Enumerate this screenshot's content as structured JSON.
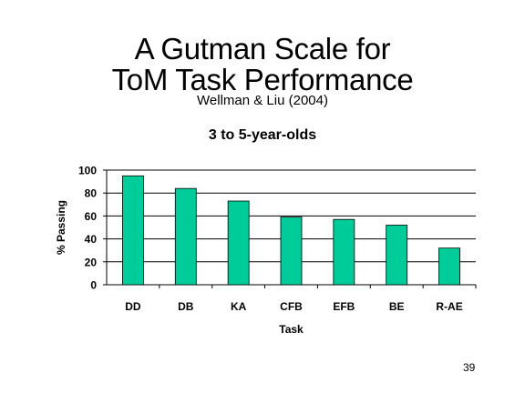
{
  "slide": {
    "title_line1": "A Gutman Scale for",
    "title_line2": "ToM Task Performance",
    "subtitle": "Wellman & Liu (2004)",
    "page_number": "39"
  },
  "colors": {
    "bar": "#00cc99",
    "bar_stroke": "#000000",
    "grid": "#000000"
  },
  "chart_data": {
    "type": "bar",
    "title": "3 to 5-year-olds",
    "xlabel": "Task",
    "ylabel": "% Passing",
    "categories": [
      "DD",
      "DB",
      "KA",
      "CFB",
      "EFB",
      "BE",
      "R-AE"
    ],
    "values": [
      95,
      84,
      73,
      59,
      57,
      52,
      32
    ],
    "ylim": [
      0,
      100
    ],
    "yticks": [
      0,
      20,
      40,
      60,
      80,
      100
    ],
    "grid": true,
    "legend": "none"
  }
}
